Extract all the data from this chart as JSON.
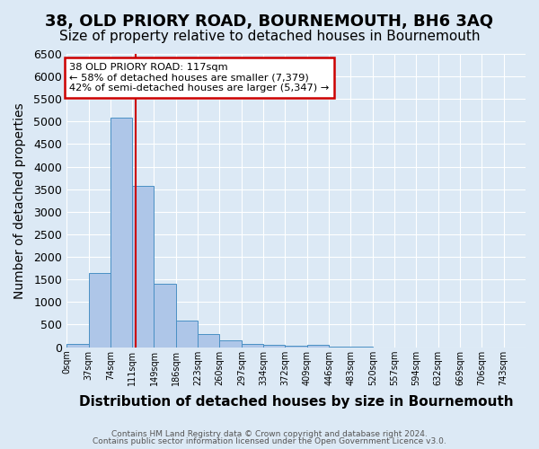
{
  "title": "38, OLD PRIORY ROAD, BOURNEMOUTH, BH6 3AQ",
  "subtitle": "Size of property relative to detached houses in Bournemouth",
  "xlabel": "Distribution of detached houses by size in Bournemouth",
  "ylabel": "Number of detached properties",
  "footer_line1": "Contains HM Land Registry data © Crown copyright and database right 2024.",
  "footer_line2": "Contains public sector information licensed under the Open Government Licence v3.0.",
  "bar_color": "#aec6e8",
  "bar_edge_color": "#4a90c4",
  "red_line_x": 117,
  "annotation_text": "38 OLD PRIORY ROAD: 117sqm\n← 58% of detached houses are smaller (7,379)\n42% of semi-detached houses are larger (5,347) →",
  "annotation_box_color": "#ffffff",
  "annotation_box_edge": "#cc0000",
  "bin_edges": [
    0,
    37,
    74,
    111,
    148,
    185,
    222,
    259,
    296,
    333,
    370,
    407,
    444,
    481,
    518,
    555,
    592,
    629,
    666,
    703,
    740
  ],
  "bin_labels": [
    "0sqm",
    "37sqm",
    "74sqm",
    "111sqm",
    "149sqm",
    "186sqm",
    "223sqm",
    "260sqm",
    "297sqm",
    "334sqm",
    "372sqm",
    "409sqm",
    "446sqm",
    "483sqm",
    "520sqm",
    "557sqm",
    "594sqm",
    "632sqm",
    "669sqm",
    "706sqm",
    "743sqm"
  ],
  "counts": [
    75,
    1650,
    5080,
    3580,
    1400,
    580,
    290,
    150,
    80,
    55,
    40,
    55,
    5,
    3,
    2,
    1,
    1,
    0,
    0,
    0
  ],
  "ylim": [
    0,
    6500
  ],
  "yticks": [
    0,
    500,
    1000,
    1500,
    2000,
    2500,
    3000,
    3500,
    4000,
    4500,
    5000,
    5500,
    6000,
    6500
  ],
  "background_color": "#dce9f5",
  "plot_bg_color": "#dce9f5",
  "title_fontsize": 13,
  "subtitle_fontsize": 11,
  "xlabel_fontsize": 11,
  "ylabel_fontsize": 10
}
